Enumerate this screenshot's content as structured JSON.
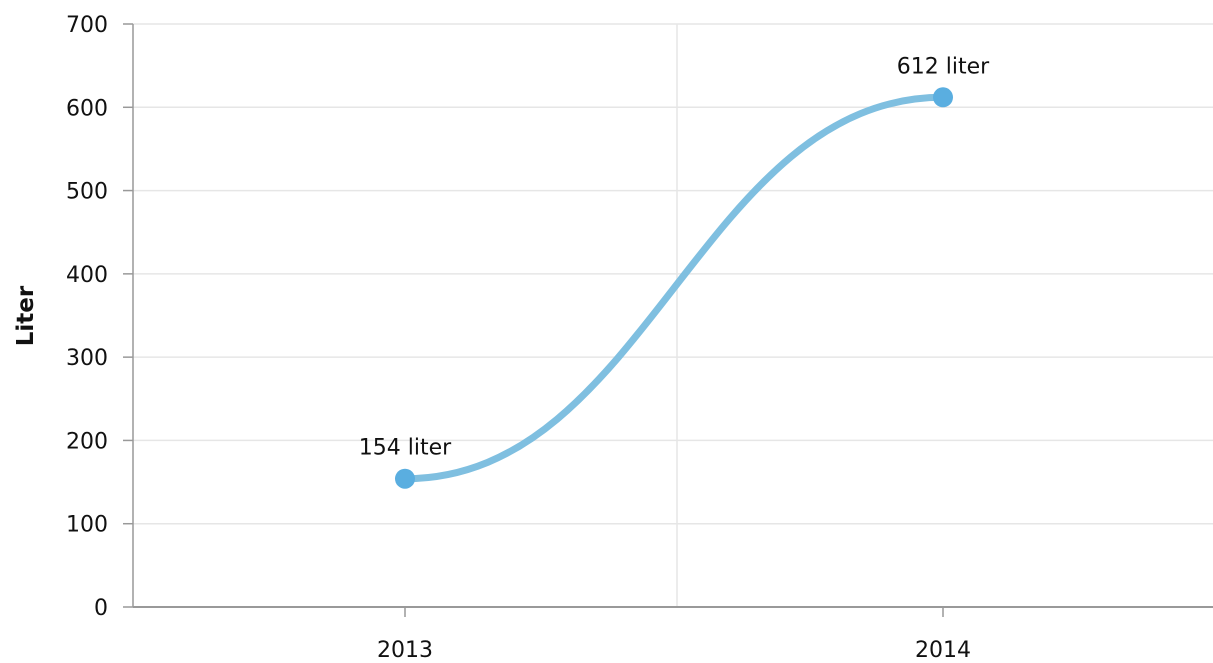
{
  "chart_data": {
    "type": "line",
    "title": "",
    "xlabel": "",
    "ylabel": "Liter",
    "categories": [
      "2013",
      "2014"
    ],
    "series": [
      {
        "values": [
          154,
          612
        ],
        "data_labels": [
          "154 liter",
          "612 liter"
        ]
      }
    ],
    "ylim": [
      0,
      700
    ],
    "yticks": [
      0,
      100,
      200,
      300,
      400,
      500,
      600,
      700
    ],
    "grid": true,
    "line_style": "smooth",
    "colors": {
      "line": "#7fbfe0",
      "marker": "#5aaee0",
      "grid": "#e6e6e6",
      "axis": "#999999"
    }
  }
}
